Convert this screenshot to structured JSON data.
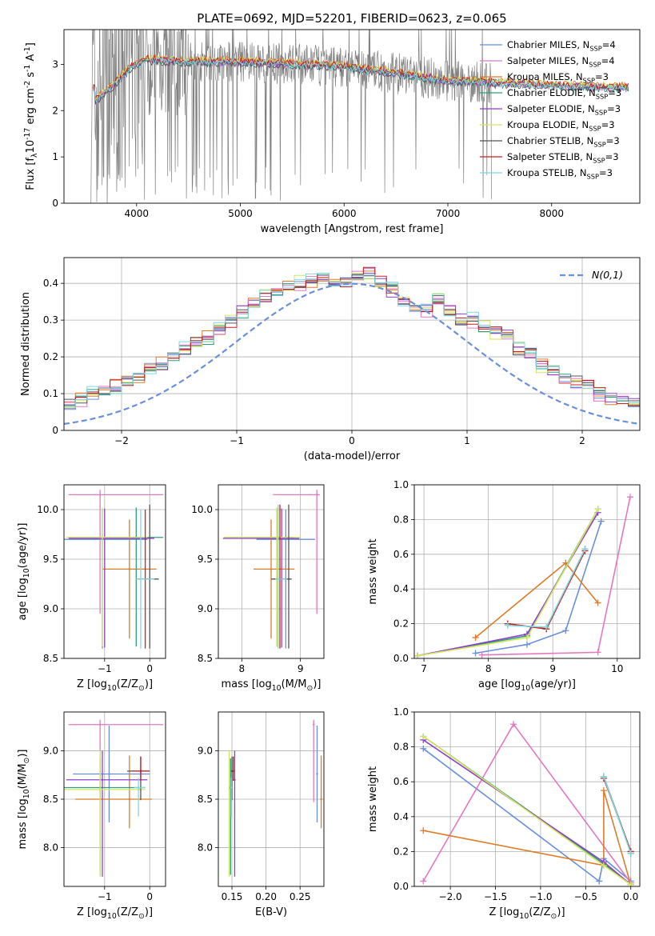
{
  "figure": {
    "title": "PLATE=0692, MJD=52201, FIBERID=0623, z=0.065"
  },
  "chart_data": [
    {
      "id": "spectrum",
      "type": "line",
      "xlabel": "wavelength [Angstrom, rest frame]",
      "ylabel": "Flux [f$_\\lambda$10$^{-17}$ erg cm$^{-2}$ s$^{-1}$ A$^{-1}$]",
      "xlim": [
        3300,
        8850
      ],
      "ylim": [
        0,
        3.75
      ],
      "xticks": [
        4000,
        5000,
        6000,
        7000,
        8000
      ],
      "yticks": [
        0,
        1,
        2,
        3
      ],
      "legend_position": "right",
      "legend": [
        {
          "label": "Chabrier MILES, N$_{SSP}$=4",
          "color": "#6a8fdc"
        },
        {
          "label": "Salpeter MILES, N$_{SSP}$=4",
          "color": "#e377c2"
        },
        {
          "label": "Kroupa MILES, N$_{SSP}$=3",
          "color": "#e07b28"
        },
        {
          "label": "Chabrier ELODIE, N$_{SSP}$=3",
          "color": "#2ca07c"
        },
        {
          "label": "Salpeter ELODIE, N$_{SSP}$=3",
          "color": "#8e3ed0"
        },
        {
          "label": "Kroupa ELODIE, N$_{SSP}$=3",
          "color": "#d4e55a"
        },
        {
          "label": "Chabrier STELIB, N$_{SSP}$=3",
          "color": "#555555"
        },
        {
          "label": "Salpeter STELIB, N$_{SSP}$=3",
          "color": "#c82020"
        },
        {
          "label": "Kroupa STELIB, N$_{SSP}$=3",
          "color": "#7fd8e0"
        }
      ],
      "data_color": "#808080",
      "model_level_points": [
        [
          3600,
          2.2
        ],
        [
          3800,
          2.6
        ],
        [
          3950,
          2.95
        ],
        [
          4100,
          3.1
        ],
        [
          4500,
          3.05
        ],
        [
          5000,
          3.05
        ],
        [
          5500,
          3.0
        ],
        [
          6000,
          2.95
        ],
        [
          6500,
          2.8
        ],
        [
          7000,
          2.65
        ],
        [
          7400,
          2.6
        ],
        [
          8000,
          2.55
        ],
        [
          8500,
          2.5
        ]
      ]
    },
    {
      "id": "residuals",
      "type": "line",
      "xlabel": "(data-model)/error",
      "ylabel": "Normed distribution",
      "xlim": [
        -2.5,
        2.5
      ],
      "ylim": [
        0,
        0.47
      ],
      "xticks": [
        -2,
        -1,
        0,
        1,
        2
      ],
      "yticks": [
        0.0,
        0.1,
        0.2,
        0.3,
        0.4
      ],
      "grid": true,
      "legend_position": "top-right",
      "reference_curve": {
        "label": "$\\mathcal{N}(0,1)$",
        "color": "#6a8fdc",
        "style": "dashed"
      },
      "histogram_bin_width": 0.1,
      "histogram_base": [
        0.03,
        0.03,
        0.035,
        0.04,
        0.04,
        0.045,
        0.055,
        0.07,
        0.085,
        0.095,
        0.11,
        0.12,
        0.13,
        0.15,
        0.17,
        0.18,
        0.2,
        0.22,
        0.24,
        0.25,
        0.27,
        0.3,
        0.32,
        0.35,
        0.37,
        0.38,
        0.39,
        0.4,
        0.41,
        0.42,
        0.4,
        0.4,
        0.42,
        0.43,
        0.4,
        0.38,
        0.35,
        0.33,
        0.33,
        0.36,
        0.33,
        0.3,
        0.3,
        0.28,
        0.27,
        0.26,
        0.22,
        0.21,
        0.18,
        0.16,
        0.14,
        0.13,
        0.12,
        0.1,
        0.09,
        0.085,
        0.07,
        0.06,
        0.055,
        0.05,
        0.045,
        0.045,
        0.04,
        0.04,
        0.035,
        0.035,
        0.03,
        0.03,
        0.03,
        0.025,
        0.025,
        0.025,
        0.02,
        0.02,
        0.02
      ],
      "series": [
        {
          "color": "#6a8fdc",
          "offset": 0.0
        },
        {
          "color": "#e07b28",
          "offset": 0.01
        },
        {
          "color": "#2ca07c",
          "offset": -0.005
        },
        {
          "color": "#e377c2",
          "offset": 0.008
        },
        {
          "color": "#8e3ed0",
          "offset": -0.008
        },
        {
          "color": "#d4e55a",
          "offset": 0.012
        },
        {
          "color": "#555555",
          "offset": -0.003
        },
        {
          "color": "#c82020",
          "offset": 0.005
        },
        {
          "color": "#7fd8e0",
          "offset": -0.01
        }
      ]
    },
    {
      "id": "age-vs-metallicity",
      "type": "scatter",
      "xlabel": "Z [log$_{10}$(Z/Z$_\\odot$)]",
      "ylabel": "age  [log$_{10}$(age/yr)]",
      "xlim": [
        -1.9,
        0.35
      ],
      "ylim": [
        8.5,
        10.25
      ],
      "xticks": [
        -1,
        0
      ],
      "yticks": [
        8.5,
        9.0,
        9.5,
        10.0
      ],
      "grid": true,
      "errorbars": [
        {
          "color": "#6a8fdc",
          "x": -1.05,
          "xerr": [
            0.9,
            1.0
          ],
          "y": 9.7,
          "yerr": [
            1.1,
            0.3
          ]
        },
        {
          "color": "#e377c2",
          "x": -1.1,
          "xerr": [
            0.7,
            1.4
          ],
          "y": 10.15,
          "yerr": [
            1.2,
            0.05
          ]
        },
        {
          "color": "#e07b28",
          "x": -0.45,
          "xerr": [
            0.6,
            0.6
          ],
          "y": 9.4,
          "yerr": [
            0.7,
            0.5
          ]
        },
        {
          "color": "#2ca07c",
          "x": -0.3,
          "xerr": [
            1.5,
            0.6
          ],
          "y": 9.72,
          "yerr": [
            1.1,
            0.3
          ]
        },
        {
          "color": "#8e3ed0",
          "x": -1.0,
          "xerr": [
            0.8,
            1.1
          ],
          "y": 9.71,
          "yerr": [
            1.1,
            0.3
          ]
        },
        {
          "color": "#d4e55a",
          "x": -1.05,
          "xerr": [
            0.8,
            1.0
          ],
          "y": 9.72,
          "yerr": [
            1.1,
            0.3
          ]
        },
        {
          "color": "#555555",
          "x": 0.0,
          "xerr": [
            0.3,
            0.2
          ],
          "y": 9.3,
          "yerr": [
            0.7,
            0.75
          ]
        },
        {
          "color": "#c82020",
          "x": -0.1,
          "xerr": [
            0.2,
            0.2
          ],
          "y": 9.3,
          "yerr": [
            0.7,
            0.7
          ]
        },
        {
          "color": "#7fd8e0",
          "x": -0.2,
          "xerr": [
            0.1,
            0.3
          ],
          "y": 9.3,
          "yerr": [
            0.7,
            0.7
          ]
        }
      ]
    },
    {
      "id": "age-vs-mass",
      "type": "scatter",
      "xlabel": "mass [log$_{10}$(M/M$_\\odot$)]",
      "xlim": [
        7.6,
        9.4
      ],
      "ylim": [
        8.5,
        10.25
      ],
      "xticks": [
        8,
        9
      ],
      "yticks": [
        8.5,
        9.0,
        9.5,
        10.0
      ],
      "grid": true,
      "errorbars": [
        {
          "color": "#6a8fdc",
          "x": 8.75,
          "xerr": [
            0.5,
            0.5
          ],
          "y": 9.7,
          "yerr": [
            1.1,
            0.3
          ]
        },
        {
          "color": "#e377c2",
          "x": 9.28,
          "xerr": [
            0.75,
            0.05
          ],
          "y": 10.15,
          "yerr": [
            1.2,
            0.05
          ]
        },
        {
          "color": "#e07b28",
          "x": 8.5,
          "xerr": [
            0.3,
            0.4
          ],
          "y": 9.4,
          "yerr": [
            0.7,
            0.5
          ]
        },
        {
          "color": "#2ca07c",
          "x": 8.6,
          "xerr": [
            0.9,
            0.3
          ],
          "y": 9.72,
          "yerr": [
            1.1,
            0.3
          ]
        },
        {
          "color": "#8e3ed0",
          "x": 8.68,
          "xerr": [
            1.0,
            0.3
          ],
          "y": 9.71,
          "yerr": [
            1.1,
            0.3
          ]
        },
        {
          "color": "#d4e55a",
          "x": 8.6,
          "xerr": [
            0.9,
            0.4
          ],
          "y": 9.72,
          "yerr": [
            1.1,
            0.3
          ]
        },
        {
          "color": "#555555",
          "x": 8.8,
          "xerr": [
            0.3,
            0.05
          ],
          "y": 9.3,
          "yerr": [
            0.7,
            0.75
          ]
        },
        {
          "color": "#c82020",
          "x": 8.65,
          "xerr": [
            0.1,
            0.1
          ],
          "y": 9.3,
          "yerr": [
            0.7,
            0.75
          ]
        },
        {
          "color": "#7fd8e0",
          "x": 8.62,
          "xerr": [
            0.05,
            0.15
          ],
          "y": 9.3,
          "yerr": [
            0.7,
            0.75
          ]
        }
      ]
    },
    {
      "id": "mass-weight-vs-age",
      "type": "line",
      "xlabel": "age  [log$_{10}$(age/yr)]",
      "ylabel": "mass weight",
      "xlim": [
        6.85,
        10.35
      ],
      "ylim": [
        0.0,
        1.0
      ],
      "xticks": [
        7,
        8,
        9,
        10
      ],
      "yticks": [
        0.0,
        0.2,
        0.4,
        0.6,
        0.8,
        1.0
      ],
      "grid": true,
      "series": [
        {
          "color": "#6a8fdc",
          "x": [
            7.8,
            8.6,
            9.2,
            9.75
          ],
          "y": [
            0.03,
            0.08,
            0.16,
            0.79
          ]
        },
        {
          "color": "#e377c2",
          "x": [
            7.9,
            9.7,
            10.2
          ],
          "y": [
            0.02,
            0.035,
            0.93
          ]
        },
        {
          "color": "#e07b28",
          "x": [
            7.8,
            9.2,
            9.7
          ],
          "y": [
            0.12,
            0.55,
            0.32
          ]
        },
        {
          "color": "#2ca07c",
          "x": [
            6.9,
            8.6,
            9.7
          ],
          "y": [
            0.015,
            0.13,
            0.86
          ]
        },
        {
          "color": "#8e3ed0",
          "x": [
            6.9,
            8.6,
            9.7
          ],
          "y": [
            0.015,
            0.14,
            0.84
          ]
        },
        {
          "color": "#d4e55a",
          "x": [
            6.9,
            8.6,
            9.7
          ],
          "y": [
            0.015,
            0.12,
            0.86
          ]
        },
        {
          "color": "#555555",
          "x": [
            8.3,
            8.9,
            9.5
          ],
          "y": [
            0.2,
            0.17,
            0.63
          ]
        },
        {
          "color": "#c82020",
          "x": [
            8.3,
            8.9,
            9.5
          ],
          "y": [
            0.2,
            0.17,
            0.62
          ]
        },
        {
          "color": "#7fd8e0",
          "x": [
            8.3,
            8.9,
            9.5
          ],
          "y": [
            0.19,
            0.18,
            0.63
          ]
        }
      ]
    },
    {
      "id": "mass-vs-metallicity",
      "type": "scatter",
      "xlabel": "Z [log$_{10}$(Z/Z$_\\odot$)]",
      "ylabel": "mass [log$_{10}$(M/M$_\\odot$)]",
      "xlim": [
        -1.9,
        0.35
      ],
      "ylim": [
        7.6,
        9.4
      ],
      "xticks": [
        -1,
        0
      ],
      "yticks": [
        8.0,
        8.5,
        9.0
      ],
      "grid": true,
      "errorbars": [
        {
          "color": "#6a8fdc",
          "x": -0.9,
          "xerr": [
            0.8,
            0.9
          ],
          "y": 8.76,
          "yerr": [
            0.5,
            0.5
          ]
        },
        {
          "color": "#e377c2",
          "x": -1.1,
          "xerr": [
            0.7,
            1.4
          ],
          "y": 9.27,
          "yerr": [
            0.8,
            0.05
          ]
        },
        {
          "color": "#e07b28",
          "x": -0.45,
          "xerr": [
            1.2,
            0.5
          ],
          "y": 8.5,
          "yerr": [
            0.3,
            0.45
          ]
        },
        {
          "color": "#2ca07c",
          "x": -1.1,
          "xerr": [
            0.8,
            1.0
          ],
          "y": 8.62,
          "yerr": [
            0.9,
            0.3
          ]
        },
        {
          "color": "#8e3ed0",
          "x": -1.05,
          "xerr": [
            0.8,
            1.0
          ],
          "y": 8.7,
          "yerr": [
            1.0,
            0.3
          ]
        },
        {
          "color": "#d4e55a",
          "x": -1.1,
          "xerr": [
            0.8,
            1.0
          ],
          "y": 8.6,
          "yerr": [
            0.9,
            0.4
          ]
        },
        {
          "color": "#555555",
          "x": -0.2,
          "xerr": [
            0.3,
            0.2
          ],
          "y": 8.79,
          "yerr": [
            0.3,
            0.15
          ]
        },
        {
          "color": "#c82020",
          "x": -0.2,
          "xerr": [
            0.2,
            0.2
          ],
          "y": 8.79,
          "yerr": [
            0.1,
            0.15
          ]
        },
        {
          "color": "#7fd8e0",
          "x": -0.25,
          "xerr": [
            0.1,
            0.15
          ],
          "y": 8.62,
          "yerr": [
            0.3,
            0.1
          ]
        }
      ]
    },
    {
      "id": "mass-vs-ebv",
      "type": "scatter",
      "xlabel": "E(B-V)",
      "xlim": [
        0.13,
        0.285
      ],
      "ylim": [
        7.6,
        9.4
      ],
      "xticks": [
        0.15,
        0.2,
        0.25
      ],
      "yticks": [
        8.0,
        8.5,
        9.0
      ],
      "grid": true,
      "errorbars": [
        {
          "color": "#6a8fdc",
          "x": 0.275,
          "y": 8.76,
          "yerr": [
            0.5,
            0.5
          ]
        },
        {
          "color": "#e377c2",
          "x": 0.27,
          "y": 9.27,
          "yerr": [
            0.8,
            0.05
          ]
        },
        {
          "color": "#e07b28",
          "x": 0.281,
          "y": 8.5,
          "yerr": [
            0.3,
            0.45
          ]
        },
        {
          "color": "#2ca07c",
          "x": 0.148,
          "y": 8.62,
          "yerr": [
            0.9,
            0.3
          ]
        },
        {
          "color": "#8e3ed0",
          "x": 0.154,
          "y": 8.7,
          "yerr": [
            1.0,
            0.3
          ]
        },
        {
          "color": "#d4e55a",
          "x": 0.146,
          "y": 8.6,
          "yerr": [
            0.9,
            0.4
          ]
        },
        {
          "color": "#555555",
          "x": 0.15,
          "y": 8.79,
          "yerr": [
            0.3,
            0.15
          ]
        },
        {
          "color": "#c82020",
          "x": 0.152,
          "y": 8.79,
          "yerr": [
            0.1,
            0.15
          ]
        },
        {
          "color": "#7fd8e0",
          "x": 0.149,
          "y": 8.62,
          "yerr": [
            0.3,
            0.1
          ]
        }
      ]
    },
    {
      "id": "mass-weight-vs-metallicity",
      "type": "line",
      "xlabel": "Z [log$_{10}$(Z/Z$_\\odot$)]",
      "ylabel": "mass weight",
      "xlim": [
        -2.4,
        0.1
      ],
      "ylim": [
        0.0,
        1.0
      ],
      "xticks": [
        -2.0,
        -1.5,
        -1.0,
        -0.5,
        0.0
      ],
      "yticks": [
        0.0,
        0.2,
        0.4,
        0.6,
        0.8,
        1.0
      ],
      "grid": true,
      "series": [
        {
          "color": "#6a8fdc",
          "x": [
            -2.3,
            -0.35,
            -0.3,
            0.0
          ],
          "y": [
            0.79,
            0.03,
            0.16,
            0.03
          ]
        },
        {
          "color": "#e377c2",
          "x": [
            -2.3,
            -1.3,
            0.0
          ],
          "y": [
            0.03,
            0.93,
            0.02
          ]
        },
        {
          "color": "#e07b28",
          "x": [
            -2.3,
            -0.3,
            -0.3,
            0.0
          ],
          "y": [
            0.32,
            0.12,
            0.55,
            0.01
          ]
        },
        {
          "color": "#2ca07c",
          "x": [
            -2.3,
            -0.3,
            0.0
          ],
          "y": [
            0.86,
            0.13,
            0.01
          ]
        },
        {
          "color": "#8e3ed0",
          "x": [
            -2.3,
            -0.3,
            0.0
          ],
          "y": [
            0.84,
            0.14,
            0.01
          ]
        },
        {
          "color": "#d4e55a",
          "x": [
            -2.3,
            -0.3,
            0.0
          ],
          "y": [
            0.86,
            0.12,
            0.01
          ]
        },
        {
          "color": "#555555",
          "x": [
            -0.3,
            0.0,
            0.0
          ],
          "y": [
            0.63,
            0.2,
            0.19
          ]
        },
        {
          "color": "#c82020",
          "x": [
            -0.3,
            0.0
          ],
          "y": [
            0.62,
            0.2
          ]
        },
        {
          "color": "#7fd8e0",
          "x": [
            -0.3,
            0.0
          ],
          "y": [
            0.63,
            0.19
          ]
        }
      ]
    }
  ]
}
